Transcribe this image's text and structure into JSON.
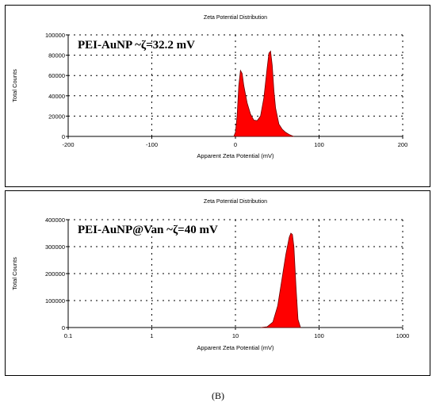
{
  "chart_data": [
    {
      "type": "area",
      "title": "Zeta Potential Distribution",
      "xlabel": "Apparent Zeta Potential (mV)",
      "ylabel": "Total Counts",
      "xscale": "linear",
      "xlim": [
        -200,
        200
      ],
      "ylim": [
        0,
        100000
      ],
      "xticks": [
        "-200",
        "-100",
        "0",
        "100",
        "200"
      ],
      "yticks": [
        "0",
        "20000",
        "40000",
        "60000",
        "80000",
        "100000"
      ],
      "annotation": "PEI-AuNP  ~ζ=32.2 mV",
      "grid": true,
      "color": "#ff0000",
      "series": [
        {
          "x": [
            -2,
            0,
            2,
            4,
            6,
            8,
            10,
            14,
            18,
            22,
            26,
            30,
            34,
            38,
            40,
            42,
            44,
            46,
            48,
            52,
            56,
            60,
            64,
            68,
            70
          ],
          "y": [
            0,
            4000,
            20000,
            50000,
            65000,
            62000,
            50000,
            33000,
            22000,
            16000,
            15500,
            20000,
            38000,
            68000,
            82000,
            84000,
            70000,
            45000,
            28000,
            12000,
            7000,
            4000,
            2000,
            500,
            0
          ]
        }
      ]
    },
    {
      "type": "area",
      "title": "Zeta Potential Distribution",
      "xlabel": "Apparent Zeta Potential (mV)",
      "ylabel": "Total Counts",
      "xscale": "log",
      "xlim": [
        0.1,
        1000
      ],
      "ylim": [
        0,
        400000
      ],
      "xticks": [
        "0.1",
        "1",
        "10",
        "100",
        "1000"
      ],
      "yticks": [
        "0",
        "100000",
        "200000",
        "300000",
        "400000"
      ],
      "annotation": "PEI-AuNP@Van  ~ζ=40 mV",
      "grid": true,
      "color": "#ff0000",
      "series": [
        {
          "x": [
            20,
            24,
            28,
            32,
            36,
            40,
            44,
            46,
            48,
            50,
            53,
            56,
            60
          ],
          "y": [
            0,
            3000,
            20000,
            80000,
            180000,
            270000,
            335000,
            350000,
            345000,
            300000,
            150000,
            30000,
            0
          ]
        }
      ]
    }
  ],
  "caption": "(B)"
}
